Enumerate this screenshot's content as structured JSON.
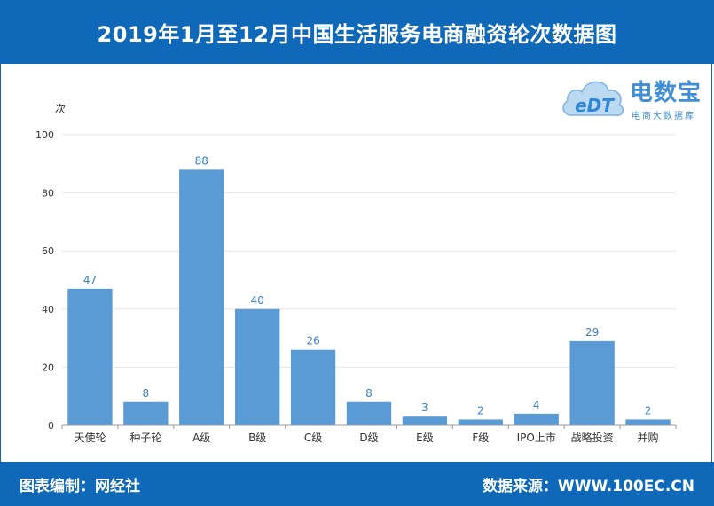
{
  "header": {
    "title": "2019年1月至12月中国生活服务电商融资轮次数据图"
  },
  "footer": {
    "left": "图表编制：网经社",
    "right": "数据来源：WWW.100EC.CN"
  },
  "logo": {
    "icon_text": "eDT",
    "brand": "电数宝",
    "sub": "电商大数据库",
    "icon": "cloud-logo-icon"
  },
  "colors": {
    "header_bg": "#0f68b8",
    "bar": "#5b9bd5",
    "data_label": "#3a7fc4"
  },
  "chart_data": {
    "type": "bar",
    "ylabel": "次",
    "ylim": [
      0,
      100
    ],
    "yticks": [
      0,
      20,
      40,
      60,
      80,
      100
    ],
    "grid": true,
    "categories": [
      "天使轮",
      "种子轮",
      "A级",
      "B级",
      "C级",
      "D级",
      "E级",
      "F级",
      "IPO上市",
      "战略投资",
      "并购"
    ],
    "values": [
      47,
      8,
      88,
      40,
      26,
      8,
      3,
      2,
      4,
      29,
      2
    ]
  }
}
